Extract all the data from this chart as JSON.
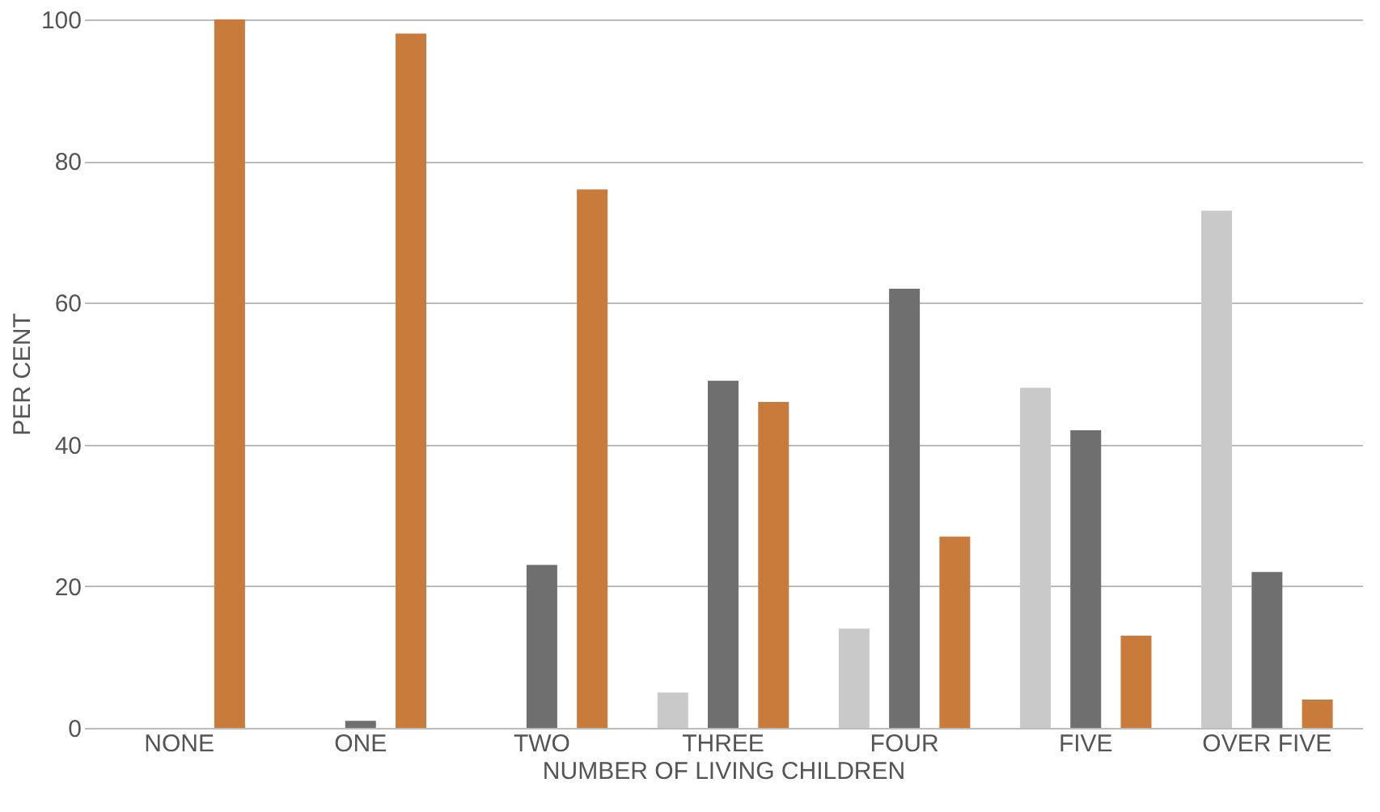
{
  "chart_data": {
    "type": "bar",
    "xlabel": "NUMBER OF LIVING CHILDREN",
    "ylabel": "PER CENT",
    "categories": [
      "NONE",
      "ONE",
      "TWO",
      "THREE",
      "FOUR",
      "FIVE",
      "OVER FIVE"
    ],
    "series": [
      {
        "color": "#c9c9c9",
        "values": [
          0,
          0,
          0,
          5,
          14,
          48,
          73
        ]
      },
      {
        "color": "#6f6f6f",
        "values": [
          0,
          1,
          23,
          49,
          62,
          42,
          22
        ]
      },
      {
        "color": "#c97b3c",
        "values": [
          100,
          98,
          76,
          46,
          27,
          13,
          4
        ]
      }
    ],
    "ylim": [
      0,
      100
    ],
    "yticks": [
      0,
      20,
      40,
      60,
      80,
      100
    ],
    "grid": "y",
    "legend": false
  }
}
